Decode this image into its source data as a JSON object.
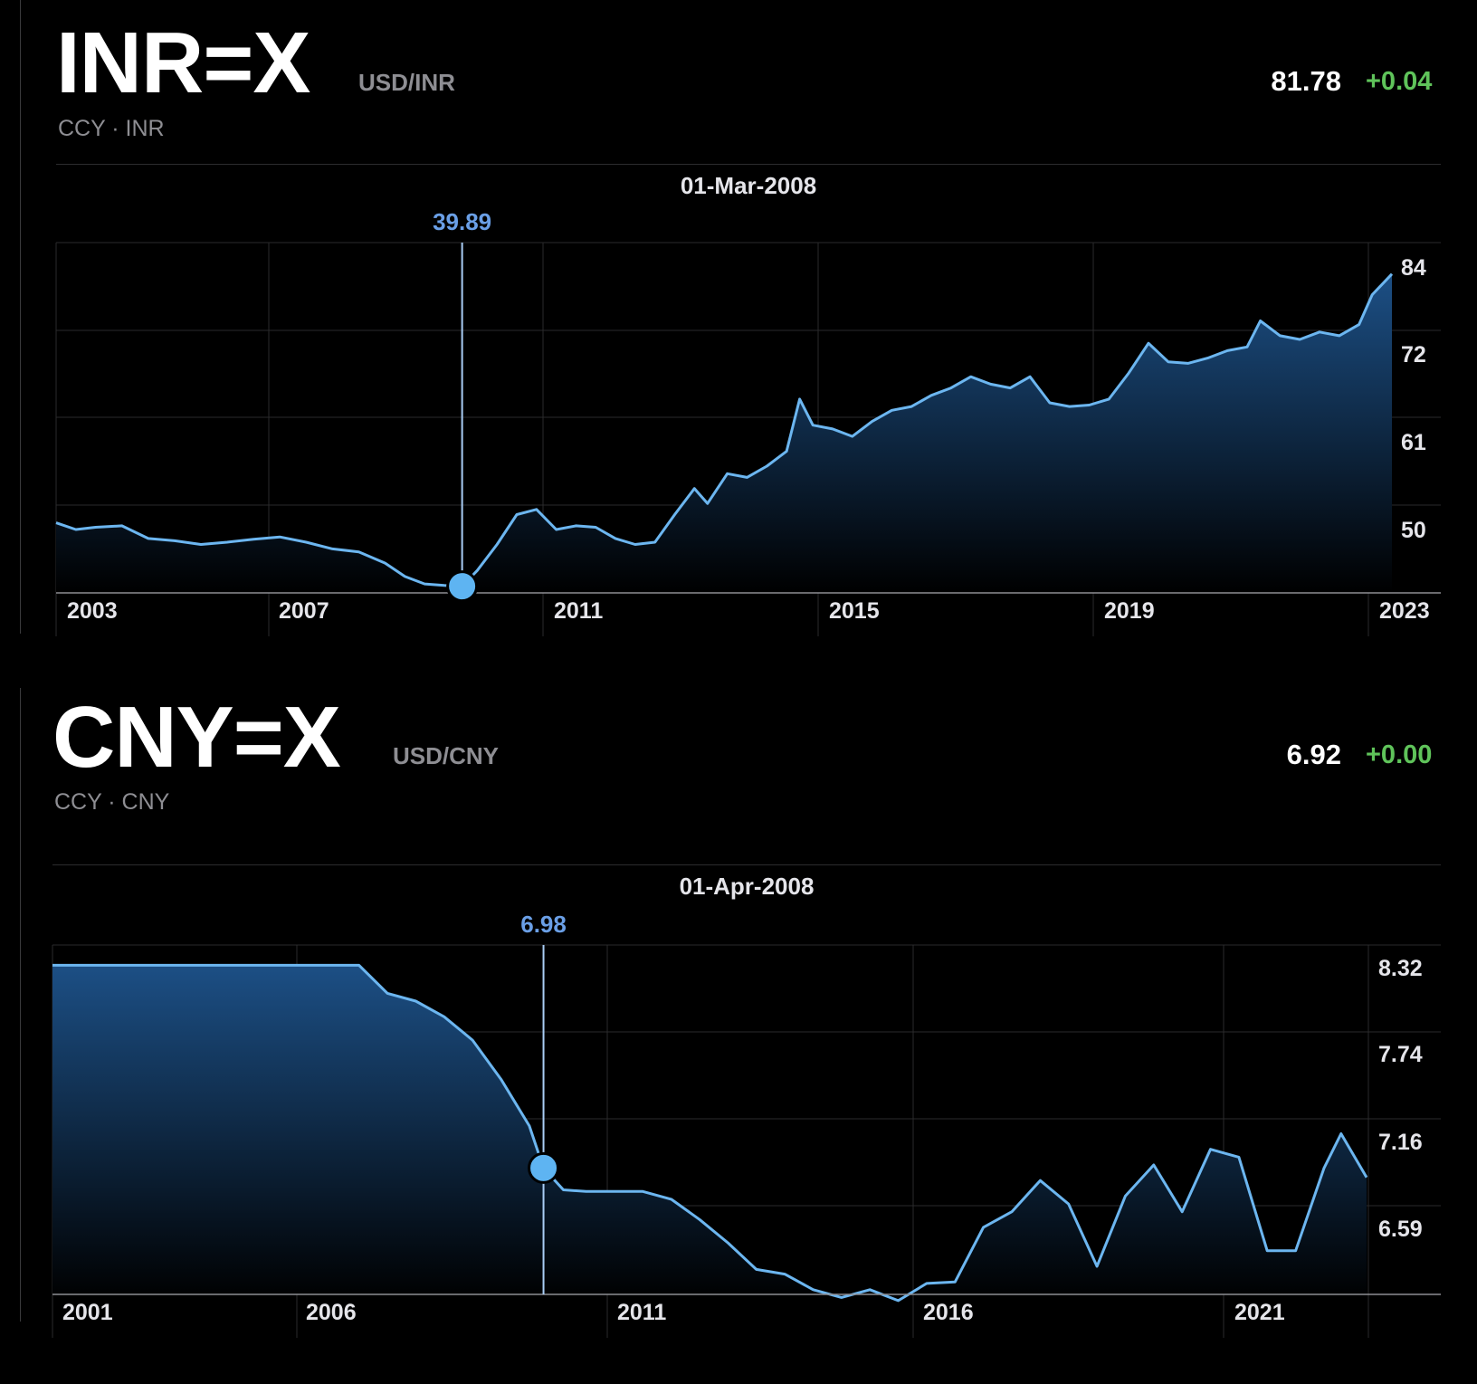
{
  "panels": [
    {
      "symbol": "INR=X",
      "pair": "USD/INR",
      "subtitle": "CCY · INR",
      "price": "81.78",
      "change": "+0.04",
      "selected_date": "01-Mar-2008",
      "selected_value": "39.89"
    },
    {
      "symbol": "CNY=X",
      "pair": "USD/CNY",
      "subtitle": "CCY · CNY",
      "price": "6.92",
      "change": "+0.00",
      "selected_date": "01-Apr-2008",
      "selected_value": "6.98"
    }
  ],
  "colors": {
    "line": "#6cb6f0",
    "fill_top": "#1c4f85",
    "fill_bottom": "#000000",
    "marker": "#5eb4f2",
    "marker_label": "#6a9fe6",
    "change_positive": "#5fc35a",
    "grid": "#2a2a2c",
    "axis": "#8e8e93"
  },
  "chart_data": [
    {
      "type": "area",
      "x_ticks": [
        "2003",
        "2007",
        "2011",
        "2015",
        "2019",
        "2023"
      ],
      "y_ticks": [
        "84",
        "72",
        "61",
        "50"
      ],
      "ylim": [
        39,
        86
      ],
      "xlim": [
        2002.0,
        2022.3
      ],
      "grid": true,
      "selected": {
        "x": 2008.17,
        "y": 39.89
      },
      "x": [
        2002.0,
        2002.3,
        2002.6,
        2003.0,
        2003.4,
        2003.8,
        2004.2,
        2004.6,
        2005.0,
        2005.4,
        2005.8,
        2006.2,
        2006.6,
        2007.0,
        2007.3,
        2007.6,
        2007.9,
        2008.17,
        2008.4,
        2008.7,
        2009.0,
        2009.3,
        2009.6,
        2009.9,
        2010.2,
        2010.5,
        2010.8,
        2011.1,
        2011.4,
        2011.7,
        2011.9,
        2012.2,
        2012.5,
        2012.8,
        2013.1,
        2013.3,
        2013.5,
        2013.8,
        2014.1,
        2014.4,
        2014.7,
        2015.0,
        2015.3,
        2015.6,
        2015.9,
        2016.2,
        2016.5,
        2016.8,
        2017.1,
        2017.4,
        2017.7,
        2018.0,
        2018.3,
        2018.6,
        2018.9,
        2019.2,
        2019.5,
        2019.8,
        2020.1,
        2020.3,
        2020.6,
        2020.9,
        2021.2,
        2021.5,
        2021.8,
        2022.0,
        2022.3
      ],
      "y": [
        48.4,
        47.5,
        47.8,
        48.0,
        46.3,
        46.0,
        45.5,
        45.8,
        46.2,
        46.5,
        45.8,
        44.9,
        44.5,
        43.0,
        41.2,
        40.2,
        40.0,
        39.89,
        42.0,
        45.5,
        49.5,
        50.2,
        47.5,
        48.0,
        47.8,
        46.3,
        45.5,
        45.8,
        49.5,
        53.0,
        51.0,
        55.0,
        54.5,
        56.0,
        58.0,
        65.0,
        61.5,
        61.0,
        60.0,
        62.0,
        63.5,
        64.0,
        65.5,
        66.5,
        68.0,
        67.0,
        66.5,
        68.0,
        64.5,
        64.0,
        64.2,
        65.0,
        68.5,
        72.5,
        70.0,
        69.8,
        70.5,
        71.5,
        72.0,
        75.5,
        73.5,
        73.0,
        74.0,
        73.5,
        75.0,
        79.0,
        81.78
      ]
    },
    {
      "type": "area",
      "x_ticks": [
        "2001",
        "2006",
        "2011",
        "2016",
        "2021"
      ],
      "y_ticks": [
        "8.32",
        "7.74",
        "7.16",
        "6.59"
      ],
      "ylim": [
        6.17,
        8.41
      ],
      "xlim": [
        1999.6,
        2022.75
      ],
      "grid": true,
      "selected": {
        "x": 2008.25,
        "y": 6.98
      },
      "x": [
        1999.6,
        2001.0,
        2002.0,
        2003.0,
        2004.0,
        2005.0,
        2005.5,
        2006.0,
        2006.5,
        2007.0,
        2007.5,
        2008.0,
        2008.25,
        2008.6,
        2009.0,
        2009.5,
        2010.0,
        2010.5,
        2011.0,
        2011.5,
        2012.0,
        2012.5,
        2013.0,
        2013.5,
        2014.0,
        2014.5,
        2015.0,
        2015.5,
        2016.0,
        2016.5,
        2017.0,
        2017.5,
        2018.0,
        2018.5,
        2019.0,
        2019.5,
        2020.0,
        2020.5,
        2021.0,
        2021.5,
        2022.0,
        2022.3,
        2022.75
      ],
      "y": [
        8.28,
        8.28,
        8.28,
        8.28,
        8.28,
        8.28,
        8.1,
        8.05,
        7.95,
        7.8,
        7.55,
        7.25,
        6.98,
        6.84,
        6.83,
        6.83,
        6.83,
        6.78,
        6.65,
        6.5,
        6.33,
        6.3,
        6.2,
        6.15,
        6.2,
        6.13,
        6.24,
        6.25,
        6.6,
        6.7,
        6.9,
        6.75,
        6.35,
        6.8,
        7.0,
        6.7,
        7.1,
        7.05,
        6.45,
        6.45,
        6.98,
        7.2,
        6.92
      ]
    }
  ]
}
